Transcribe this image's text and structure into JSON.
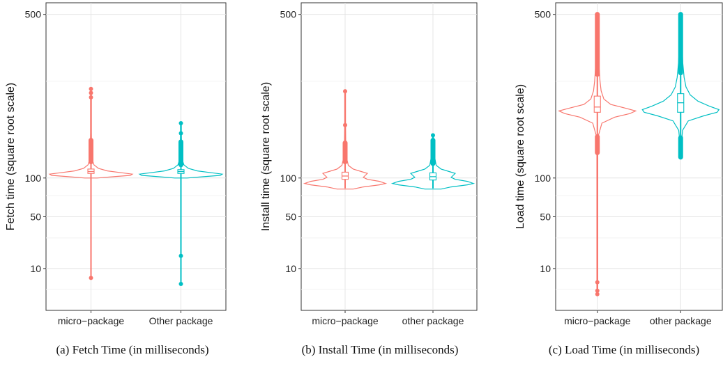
{
  "chart_data": [
    {
      "type": "violin",
      "caption": "(a) Fetch Time (in milliseconds)",
      "ylabel": "Fetch time (square root scale)",
      "scale": "sqrt",
      "yticks": [
        10,
        50,
        100,
        500
      ],
      "ylim": [
        0,
        540
      ],
      "categories": [
        "micro−package",
        "Other package"
      ],
      "series": [
        {
          "color": "#f8766d",
          "min": 6,
          "q1": 107,
          "median": 110,
          "q3": 114,
          "max": 280,
          "outliers": [
            6,
            259,
            270,
            280
          ],
          "outlier_range": [
            126,
            165
          ],
          "density": [
            [
              100,
              0.15
            ],
            [
              102,
              0.55
            ],
            [
              104,
              0.95
            ],
            [
              106,
              1.0
            ],
            [
              108,
              0.75
            ],
            [
              111,
              0.4
            ],
            [
              115,
              0.18
            ],
            [
              121,
              0.07
            ],
            [
              130,
              0.03
            ],
            [
              150,
              0.015
            ],
            [
              180,
              0.008
            ],
            [
              220,
              0.005
            ],
            [
              280,
              0.003
            ]
          ]
        },
        {
          "color": "#00bfc4",
          "min": 4,
          "q1": 107,
          "median": 110,
          "q3": 113,
          "max": 200,
          "outliers": [
            4,
            17,
            179,
            200
          ],
          "outlier_range": [
            121,
            162
          ],
          "density": [
            [
              100,
              0.15
            ],
            [
              102,
              0.55
            ],
            [
              104,
              0.95
            ],
            [
              106,
              1.0
            ],
            [
              108,
              0.75
            ],
            [
              111,
              0.4
            ],
            [
              115,
              0.18
            ],
            [
              121,
              0.07
            ],
            [
              130,
              0.03
            ],
            [
              150,
              0.015
            ],
            [
              180,
              0.008
            ],
            [
              200,
              0.004
            ]
          ]
        }
      ]
    },
    {
      "type": "violin",
      "caption": "(b) Install Time (in milliseconds)",
      "ylabel": "Install time (square root scale)",
      "scale": "sqrt",
      "yticks": [
        10,
        50,
        100,
        500
      ],
      "ylim": [
        0,
        540
      ],
      "categories": [
        "micro−package",
        "other package"
      ],
      "series": [
        {
          "color": "#f8766d",
          "min": 85,
          "q1": 98,
          "median": 103,
          "q3": 109,
          "max": 274,
          "outliers": [
            274,
            196
          ],
          "outlier_range": [
            126,
            160
          ],
          "density": [
            [
              84,
              0.2
            ],
            [
              87,
              0.45
            ],
            [
              90,
              0.85
            ],
            [
              92,
              1.0
            ],
            [
              95,
              0.85
            ],
            [
              98,
              0.55
            ],
            [
              101,
              0.45
            ],
            [
              104,
              0.5
            ],
            [
              107,
              0.55
            ],
            [
              110,
              0.4
            ],
            [
              114,
              0.2
            ],
            [
              120,
              0.08
            ],
            [
              135,
              0.03
            ],
            [
              160,
              0.015
            ],
            [
              200,
              0.007
            ],
            [
              274,
              0.003
            ]
          ]
        },
        {
          "color": "#00bfc4",
          "min": 85,
          "q1": 97,
          "median": 102,
          "q3": 108,
          "max": 175,
          "outliers": [
            175
          ],
          "outlier_range": [
            123,
            165
          ],
          "density": [
            [
              84,
              0.2
            ],
            [
              87,
              0.45
            ],
            [
              90,
              0.85
            ],
            [
              92,
              1.0
            ],
            [
              95,
              0.85
            ],
            [
              98,
              0.55
            ],
            [
              101,
              0.45
            ],
            [
              104,
              0.5
            ],
            [
              107,
              0.55
            ],
            [
              110,
              0.4
            ],
            [
              114,
              0.2
            ],
            [
              120,
              0.08
            ],
            [
              135,
              0.04
            ],
            [
              160,
              0.02
            ],
            [
              175,
              0.008
            ]
          ]
        }
      ]
    },
    {
      "type": "violin",
      "caption": "(c) Load Time (in milliseconds)",
      "ylabel": "Load time (square root scale)",
      "scale": "sqrt",
      "yticks": [
        10,
        50,
        100,
        500
      ],
      "ylim": [
        0,
        540
      ],
      "categories": [
        "micro−package",
        "other package"
      ],
      "series": [
        {
          "color": "#f8766d",
          "min": 1.5,
          "q1": 224,
          "median": 236,
          "q3": 262,
          "max": 500,
          "outliers": [
            1.5,
            2.2,
            4.5
          ],
          "outlier_range": [
            [
              142,
              172
            ],
            [
              318,
              500
            ]
          ],
          "density": [
            [
              1.5,
              0.005
            ],
            [
              20,
              0.005
            ],
            [
              60,
              0.008
            ],
            [
              100,
              0.01
            ],
            [
              140,
              0.012
            ],
            [
              175,
              0.03
            ],
            [
              200,
              0.12
            ],
            [
              213,
              0.45
            ],
            [
              221,
              0.85
            ],
            [
              227,
              1.0
            ],
            [
              233,
              0.75
            ],
            [
              242,
              0.35
            ],
            [
              255,
              0.17
            ],
            [
              275,
              0.1
            ],
            [
              300,
              0.07
            ],
            [
              340,
              0.045
            ],
            [
              390,
              0.025
            ],
            [
              450,
              0.015
            ],
            [
              500,
              0.01
            ]
          ]
        },
        {
          "color": "#00bfc4",
          "min": 147,
          "q1": 224,
          "median": 246,
          "q3": 268,
          "max": 500,
          "outliers": [],
          "outlier_range": [
            [
              134,
              170
            ],
            [
              322,
              500
            ]
          ],
          "density": [
            [
              133,
              0.012
            ],
            [
              160,
              0.02
            ],
            [
              185,
              0.05
            ],
            [
              205,
              0.2
            ],
            [
              216,
              0.6
            ],
            [
              224,
              0.95
            ],
            [
              230,
              1.0
            ],
            [
              238,
              0.75
            ],
            [
              250,
              0.45
            ],
            [
              265,
              0.25
            ],
            [
              285,
              0.14
            ],
            [
              310,
              0.09
            ],
            [
              350,
              0.055
            ],
            [
              400,
              0.035
            ],
            [
              450,
              0.022
            ],
            [
              500,
              0.012
            ]
          ]
        }
      ]
    }
  ]
}
